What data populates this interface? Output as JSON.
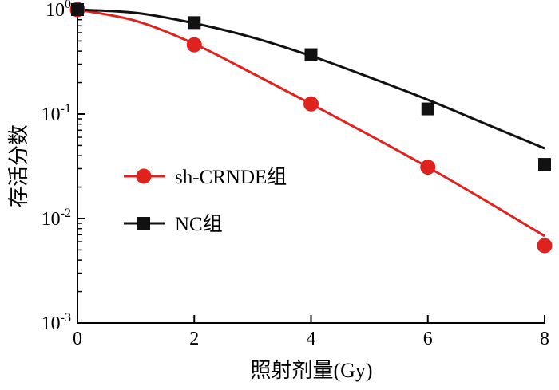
{
  "chart_data": {
    "type": "line",
    "xlabel": "照射剂量(Gy)",
    "ylabel": "存活分数",
    "x_ticks": [
      "0",
      "2",
      "4",
      "6",
      "8"
    ],
    "y_ticks": [
      {
        "base": "10",
        "exp": "0"
      },
      {
        "base": "10",
        "exp": "-1"
      },
      {
        "base": "10",
        "exp": "-2"
      },
      {
        "base": "10",
        "exp": "-3"
      }
    ],
    "xlim": [
      0,
      8
    ],
    "ylim": [
      0.001,
      1
    ],
    "yscale": "log",
    "grid": false,
    "legend_position": "center-left",
    "series": [
      {
        "name": "sh-CRNDE组",
        "marker": "circle",
        "color": "#e0221f",
        "points": [
          {
            "x": 0,
            "y": 1.0
          },
          {
            "x": 2,
            "y": 0.46
          },
          {
            "x": 4,
            "y": 0.125
          },
          {
            "x": 6,
            "y": 0.031
          },
          {
            "x": 8,
            "y": 0.0055
          }
        ],
        "fit": [
          {
            "x": 0,
            "y": 1.0
          },
          {
            "x": 1,
            "y": 0.78
          },
          {
            "x": 2,
            "y": 0.47
          },
          {
            "x": 3,
            "y": 0.245
          },
          {
            "x": 4,
            "y": 0.125
          },
          {
            "x": 5,
            "y": 0.063
          },
          {
            "x": 6,
            "y": 0.031
          },
          {
            "x": 7,
            "y": 0.0147
          },
          {
            "x": 8,
            "y": 0.0068
          }
        ]
      },
      {
        "name": "NC组",
        "marker": "square",
        "color": "#111111",
        "points": [
          {
            "x": 0,
            "y": 1.0
          },
          {
            "x": 2,
            "y": 0.75
          },
          {
            "x": 4,
            "y": 0.37
          },
          {
            "x": 6,
            "y": 0.112
          },
          {
            "x": 8,
            "y": 0.033
          }
        ],
        "fit": [
          {
            "x": 0,
            "y": 1.0
          },
          {
            "x": 1,
            "y": 0.93
          },
          {
            "x": 2,
            "y": 0.74
          },
          {
            "x": 3,
            "y": 0.54
          },
          {
            "x": 4,
            "y": 0.36
          },
          {
            "x": 5,
            "y": 0.225
          },
          {
            "x": 6,
            "y": 0.137
          },
          {
            "x": 7,
            "y": 0.08
          },
          {
            "x": 8,
            "y": 0.047
          }
        ]
      }
    ]
  }
}
